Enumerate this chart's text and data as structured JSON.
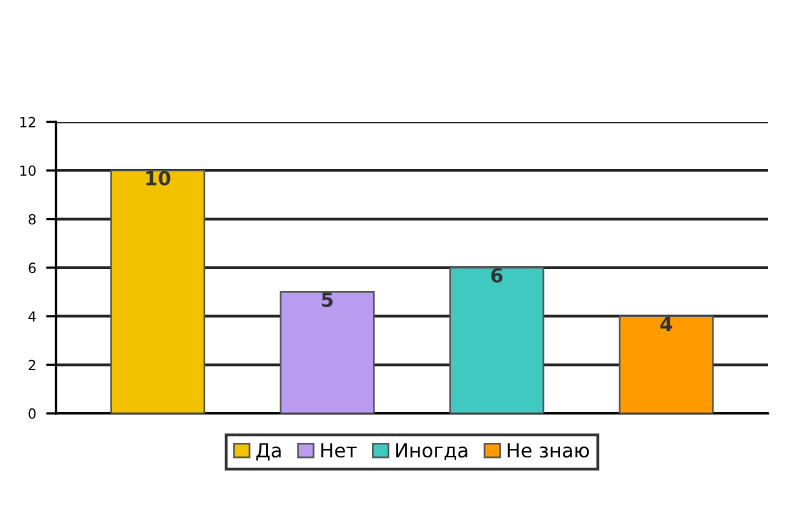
{
  "chart_data": {
    "type": "bar",
    "categories": [
      null,
      null,
      null,
      null
    ],
    "series": [
      {
        "name": "Да",
        "color": "#f2c200",
        "values": [
          10,
          null,
          null,
          null
        ]
      },
      {
        "name": "Нет",
        "color": "#b99cf0",
        "values": [
          null,
          5,
          null,
          null
        ]
      },
      {
        "name": "Иногда",
        "color": "#3fc9c0",
        "values": [
          null,
          null,
          6,
          null
        ]
      },
      {
        "name": "Не знаю",
        "color": "#ff9a00",
        "values": [
          null,
          null,
          null,
          4
        ]
      }
    ],
    "ylim": [
      0,
      12
    ],
    "yticks": [
      0,
      2,
      4,
      6,
      8,
      10,
      12
    ],
    "grid": "y",
    "data_labels": true,
    "legend": "bottom",
    "tick_labels": "y"
  }
}
